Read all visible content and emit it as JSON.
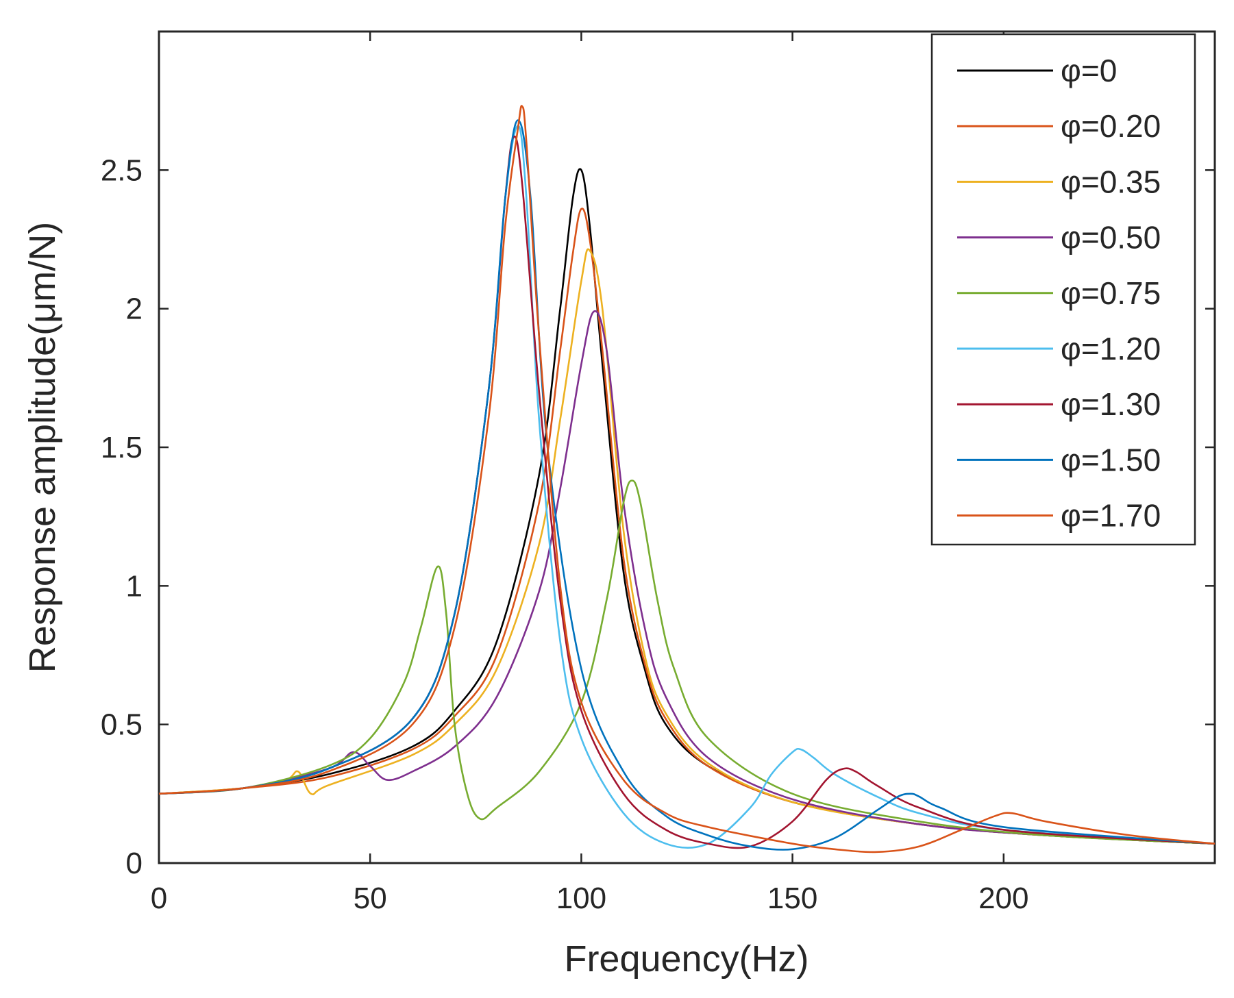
{
  "chart_data": {
    "type": "line",
    "xlabel": "Frequency(Hz)",
    "ylabel": "Response amplitude(μm/N)",
    "xlim": [
      0,
      250
    ],
    "ylim": [
      0,
      3.0
    ],
    "xticks": [
      "0",
      "50",
      "100",
      "150",
      "200"
    ],
    "xtick_values": [
      0,
      50,
      100,
      150,
      200
    ],
    "yticks": [
      "0",
      "0.5",
      "1",
      "1.5",
      "2",
      "2.5"
    ],
    "ytick_values": [
      0,
      0.5,
      1,
      1.5,
      2,
      2.5
    ],
    "grid": false,
    "legend_position": "top-right",
    "series": [
      {
        "name": "φ=0",
        "color": "#000000",
        "x": [
          0,
          20,
          40,
          60,
          70,
          80,
          90,
          95,
          98,
          100,
          102,
          105,
          110,
          115,
          120,
          130,
          150,
          180,
          210,
          250
        ],
        "y": [
          0.25,
          0.27,
          0.32,
          0.42,
          0.55,
          0.8,
          1.4,
          2.0,
          2.4,
          2.5,
          2.3,
          1.8,
          1.05,
          0.7,
          0.5,
          0.35,
          0.22,
          0.14,
          0.1,
          0.07
        ]
      },
      {
        "name": "φ=0.20",
        "color": "#d95319",
        "x": [
          0,
          20,
          40,
          60,
          70,
          80,
          90,
          95,
          98,
          100,
          102,
          105,
          110,
          115,
          120,
          130,
          150,
          180,
          210,
          250
        ],
        "y": [
          0.25,
          0.27,
          0.31,
          0.41,
          0.53,
          0.75,
          1.3,
          1.85,
          2.2,
          2.36,
          2.25,
          1.85,
          1.1,
          0.72,
          0.52,
          0.35,
          0.22,
          0.14,
          0.1,
          0.07
        ]
      },
      {
        "name": "φ=0.35",
        "color": "#edb120",
        "x": [
          0,
          20,
          30,
          33,
          36,
          40,
          60,
          70,
          80,
          90,
          95,
          100,
          102,
          105,
          110,
          115,
          120,
          130,
          150,
          180,
          210,
          250
        ],
        "y": [
          0.25,
          0.27,
          0.3,
          0.33,
          0.25,
          0.28,
          0.39,
          0.5,
          0.7,
          1.15,
          1.6,
          2.1,
          2.21,
          2.0,
          1.2,
          0.75,
          0.54,
          0.36,
          0.22,
          0.14,
          0.1,
          0.07
        ]
      },
      {
        "name": "φ=0.50",
        "color": "#7e2f8e",
        "x": [
          0,
          20,
          40,
          46,
          50,
          54,
          60,
          70,
          80,
          90,
          95,
          100,
          103,
          106,
          110,
          115,
          120,
          130,
          150,
          180,
          210,
          250
        ],
        "y": [
          0.25,
          0.27,
          0.34,
          0.4,
          0.35,
          0.3,
          0.33,
          0.42,
          0.6,
          0.98,
          1.35,
          1.8,
          1.99,
          1.85,
          1.3,
          0.85,
          0.6,
          0.38,
          0.23,
          0.14,
          0.1,
          0.07
        ]
      },
      {
        "name": "φ=0.75",
        "color": "#77ac30",
        "x": [
          0,
          20,
          40,
          50,
          58,
          62,
          66,
          68,
          70,
          73,
          76,
          80,
          90,
          100,
          106,
          110,
          112,
          114,
          118,
          122,
          130,
          150,
          180,
          210,
          250
        ],
        "y": [
          0.25,
          0.27,
          0.35,
          0.45,
          0.65,
          0.85,
          1.07,
          0.9,
          0.5,
          0.25,
          0.16,
          0.2,
          0.33,
          0.58,
          0.95,
          1.3,
          1.38,
          1.3,
          0.95,
          0.7,
          0.45,
          0.25,
          0.15,
          0.1,
          0.07
        ]
      },
      {
        "name": "φ=1.20",
        "color": "#4dbeee",
        "x": [
          0,
          20,
          40,
          60,
          70,
          78,
          82,
          85,
          87,
          90,
          95,
          100,
          110,
          120,
          130,
          140,
          145,
          150,
          152,
          155,
          160,
          170,
          180,
          200,
          250
        ],
        "y": [
          0.25,
          0.27,
          0.34,
          0.52,
          0.9,
          1.7,
          2.4,
          2.66,
          2.4,
          1.6,
          0.8,
          0.45,
          0.18,
          0.07,
          0.07,
          0.2,
          0.32,
          0.4,
          0.41,
          0.38,
          0.32,
          0.24,
          0.18,
          0.12,
          0.07
        ]
      },
      {
        "name": "φ=1.30",
        "color": "#a2142f",
        "x": [
          0,
          20,
          40,
          60,
          70,
          78,
          82,
          84,
          86,
          90,
          95,
          100,
          110,
          120,
          130,
          140,
          150,
          158,
          162,
          165,
          170,
          180,
          200,
          250
        ],
        "y": [
          0.25,
          0.27,
          0.34,
          0.52,
          0.9,
          1.7,
          2.4,
          2.62,
          2.45,
          1.7,
          0.95,
          0.55,
          0.25,
          0.12,
          0.07,
          0.06,
          0.15,
          0.3,
          0.34,
          0.33,
          0.28,
          0.2,
          0.12,
          0.07
        ]
      },
      {
        "name": "φ=1.50",
        "color": "#0072bd",
        "x": [
          0,
          20,
          40,
          60,
          70,
          78,
          82,
          85,
          88,
          92,
          100,
          110,
          120,
          130,
          140,
          150,
          160,
          170,
          175,
          178,
          180,
          185,
          200,
          250
        ],
        "y": [
          0.25,
          0.27,
          0.34,
          0.52,
          0.9,
          1.7,
          2.4,
          2.68,
          2.4,
          1.5,
          0.7,
          0.33,
          0.17,
          0.1,
          0.06,
          0.05,
          0.09,
          0.19,
          0.24,
          0.25,
          0.24,
          0.2,
          0.13,
          0.07
        ]
      },
      {
        "name": "φ=1.70",
        "color": "#d95319",
        "x": [
          0,
          20,
          40,
          60,
          70,
          78,
          82,
          85,
          86,
          87,
          90,
          95,
          100,
          110,
          120,
          130,
          150,
          160,
          170,
          180,
          190,
          198,
          202,
          210,
          230,
          250
        ],
        "y": [
          0.25,
          0.27,
          0.33,
          0.5,
          0.85,
          1.6,
          2.3,
          2.65,
          2.73,
          2.6,
          1.9,
          1.0,
          0.58,
          0.3,
          0.18,
          0.13,
          0.07,
          0.05,
          0.04,
          0.06,
          0.12,
          0.17,
          0.18,
          0.15,
          0.1,
          0.07
        ]
      }
    ]
  }
}
